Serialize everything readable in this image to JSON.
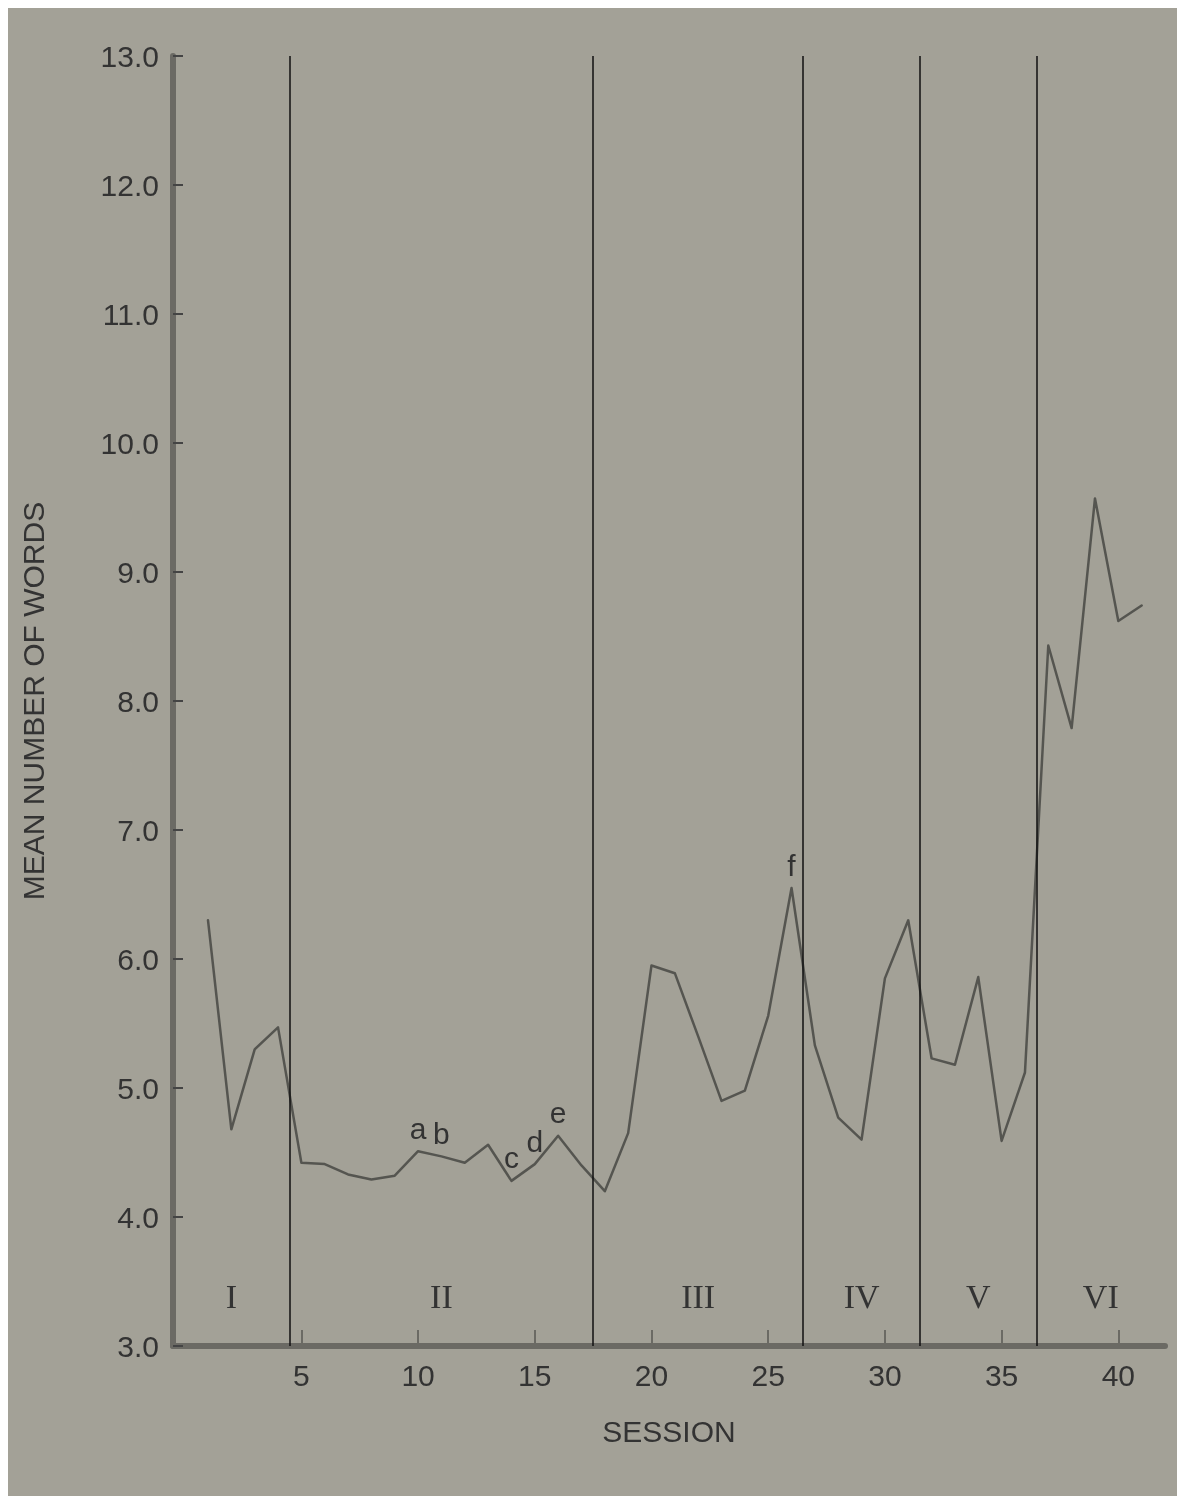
{
  "chart_data": {
    "type": "line",
    "xlabel": "SESSION",
    "ylabel": "MEAN NUMBER OF WORDS",
    "x": [
      1,
      2,
      3,
      4,
      5,
      6,
      7,
      8,
      9,
      10,
      11,
      12,
      13,
      14,
      15,
      16,
      17,
      18,
      19,
      20,
      21,
      22,
      23,
      24,
      25,
      26,
      27,
      28,
      29,
      30,
      31,
      32,
      33,
      34,
      35,
      36,
      37,
      38,
      39,
      40,
      41
    ],
    "series": [
      {
        "color": "#555550",
        "values": [
          6.3,
          4.68,
          5.3,
          5.47,
          4.42,
          4.41,
          4.33,
          4.29,
          4.32,
          4.51,
          4.47,
          4.42,
          4.56,
          4.28,
          4.41,
          4.63,
          4.4,
          4.2,
          4.65,
          5.95,
          5.89,
          5.4,
          4.9,
          4.98,
          5.56,
          6.55,
          5.33,
          4.77,
          4.6,
          5.85,
          6.3,
          5.23,
          5.18,
          5.86,
          4.59,
          5.12,
          8.43,
          7.79,
          9.57,
          8.62,
          8.74
        ]
      }
    ],
    "xlim": [
      -0.5,
      42
    ],
    "xticks": [
      5,
      10,
      15,
      20,
      25,
      30,
      35,
      40
    ],
    "ylim": [
      3,
      13
    ],
    "yticks": [
      {
        "value": 3,
        "label": "3.0"
      },
      {
        "value": 4,
        "label": "4.0"
      },
      {
        "value": 5,
        "label": "5.0"
      },
      {
        "value": 6,
        "label": "6.0"
      },
      {
        "value": 7,
        "label": "7.0"
      },
      {
        "value": 8,
        "label": "8.0"
      },
      {
        "value": 9,
        "label": "9.0"
      },
      {
        "value": 10,
        "label": "10.0"
      },
      {
        "value": 11,
        "label": "11.0"
      },
      {
        "value": 12,
        "label": "12.0"
      },
      {
        "value": 13,
        "label": "13.0"
      }
    ],
    "ref_lines": [
      {
        "axis": "x",
        "value": 4.5,
        "color": "#111111"
      },
      {
        "axis": "x",
        "value": 17.5,
        "color": "#111111"
      },
      {
        "axis": "x",
        "value": 26.5,
        "color": "#111111"
      },
      {
        "axis": "x",
        "value": 31.5,
        "color": "#111111"
      },
      {
        "axis": "x",
        "value": 36.5,
        "color": "#111111"
      }
    ],
    "annotations": [
      {
        "text": "a",
        "x": 10,
        "y": 4.51
      },
      {
        "text": "b",
        "x": 11,
        "y": 4.47
      },
      {
        "text": "c",
        "x": 14,
        "y": 4.28
      },
      {
        "text": "d",
        "x": 15,
        "y": 4.41
      },
      {
        "text": "e",
        "x": 16,
        "y": 4.63
      },
      {
        "text": "f",
        "x": 26,
        "y": 6.55
      },
      "I",
      "II",
      "III",
      "IV",
      "V",
      "VI"
    ],
    "grid": false,
    "marker": "none",
    "line_style": "solid"
  }
}
